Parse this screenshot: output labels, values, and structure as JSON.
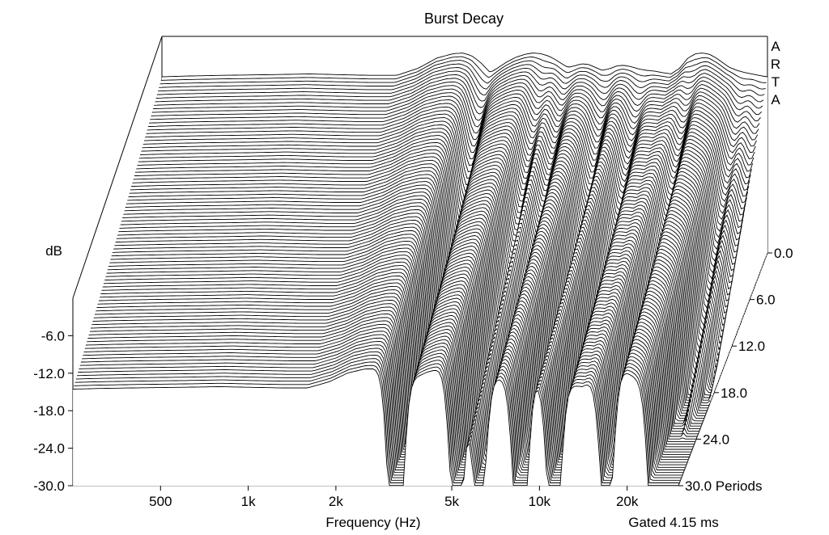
{
  "chart_data": {
    "type": "waterfall",
    "title": "Burst Decay",
    "watermark": "ARTA",
    "xlabel": "Frequency (Hz)",
    "ylabel": "dB",
    "zlabel": "Periods",
    "note": "Gated 4.15 ms",
    "x_scale": "log",
    "x_range_hz": [
      250,
      30000
    ],
    "x_ticks": [
      {
        "value": 500,
        "label": "500"
      },
      {
        "value": 1000,
        "label": "1k"
      },
      {
        "value": 2000,
        "label": "2k"
      },
      {
        "value": 5000,
        "label": "5k"
      },
      {
        "value": 10000,
        "label": "10k"
      },
      {
        "value": 20000,
        "label": "20k"
      }
    ],
    "y_range_db": [
      -30,
      0
    ],
    "y_ticks": [
      {
        "value": -6,
        "label": "-6.0"
      },
      {
        "value": -12,
        "label": "-12.0"
      },
      {
        "value": -18,
        "label": "-18.0"
      },
      {
        "value": -24,
        "label": "-24.0"
      },
      {
        "value": -30,
        "label": "-30.0"
      }
    ],
    "z_range_periods": [
      0,
      30
    ],
    "z_ticks": [
      {
        "value": 0,
        "label": "0.0"
      },
      {
        "value": 6,
        "label": "6.0"
      },
      {
        "value": 12,
        "label": "12.0"
      },
      {
        "value": 18,
        "label": "18.0"
      },
      {
        "value": 24,
        "label": "24.0"
      },
      {
        "value": 30,
        "label": "30.0 Periods"
      }
    ],
    "slice_count": 91,
    "slice_step_periods": 0.333,
    "initial_response": {
      "freq_hz": [
        250,
        300,
        400,
        600,
        800,
        1000,
        1300,
        1600,
        1900,
        2200,
        2500,
        2700,
        2900,
        3100,
        3350,
        3550,
        3800,
        4100,
        4400,
        4700,
        5000,
        5300,
        5600,
        5900,
        6200,
        6500,
        6900,
        7300,
        7700,
        8100,
        8600,
        9100,
        9600,
        10200,
        10800,
        11500,
        12200,
        13000,
        14000,
        15000,
        16000,
        17000,
        18000,
        19000,
        20000,
        21000,
        22000,
        23500,
        25000,
        26500,
        28000,
        30000
      ],
      "level_db": [
        -5.6,
        -5.5,
        -5.4,
        -5.3,
        -5.2,
        -5.3,
        -5.4,
        -5.4,
        -4.4,
        -3.0,
        -2.4,
        -2.3,
        -2.7,
        -3.6,
        -5.0,
        -4.4,
        -3.6,
        -2.9,
        -2.5,
        -2.3,
        -2.4,
        -2.7,
        -3.2,
        -3.8,
        -4.3,
        -4.1,
        -3.8,
        -3.9,
        -4.3,
        -4.7,
        -4.5,
        -4.1,
        -4.0,
        -4.2,
        -4.5,
        -4.7,
        -4.8,
        -5.0,
        -5.2,
        -4.4,
        -3.0,
        -2.4,
        -2.3,
        -2.5,
        -3.0,
        -3.6,
        -4.2,
        -4.7,
        -5.0,
        -5.2,
        -5.4,
        -5.6
      ]
    },
    "decay_notches": [
      {
        "freq_hz": 3200,
        "extra_db_per_period": 1.3
      },
      {
        "freq_hz": 5200,
        "extra_db_per_period": 1.0
      },
      {
        "freq_hz": 6200,
        "extra_db_per_period": 0.8
      },
      {
        "freq_hz": 8600,
        "extra_db_per_period": 1.1
      },
      {
        "freq_hz": 11200,
        "extra_db_per_period": 1.0
      },
      {
        "freq_hz": 17000,
        "extra_db_per_period": 0.9
      },
      {
        "freq_hz": 25000,
        "extra_db_per_period": 1.1
      },
      {
        "freq_hz": 29000,
        "extra_db_per_period": 1.2
      }
    ],
    "base_decay_db_per_period": 0.3,
    "noise_floor_db": -30
  }
}
